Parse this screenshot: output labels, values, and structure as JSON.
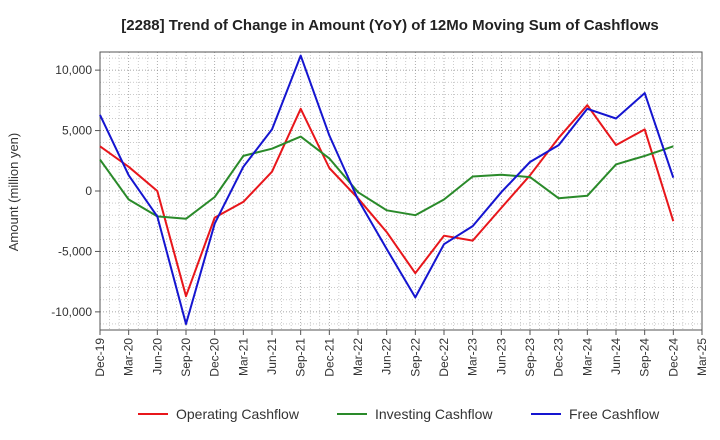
{
  "chart_data": {
    "type": "line",
    "title": "[2288]  Trend of Change in Amount (YoY) of 12Mo Moving Sum of Cashflows",
    "xlabel": "",
    "ylabel": "Amount (million yen)",
    "ylim": [
      -11500,
      11500
    ],
    "yticks": [
      10000,
      5000,
      0,
      -5000,
      -10000
    ],
    "ytick_labels": [
      "10,000",
      "5,000",
      "0",
      "-5,000",
      "-10,000"
    ],
    "categories": [
      "Dec-19",
      "Mar-20",
      "Jun-20",
      "Sep-20",
      "Dec-20",
      "Mar-21",
      "Jun-21",
      "Sep-21",
      "Dec-21",
      "Mar-22",
      "Jun-22",
      "Sep-22",
      "Dec-22",
      "Mar-23",
      "Jun-23",
      "Sep-23",
      "Dec-23",
      "Mar-24",
      "Jun-24",
      "Sep-24",
      "Dec-24",
      "Mar-25"
    ],
    "grid": true,
    "legend_position": "bottom",
    "series": [
      {
        "name": "Operating Cashflow",
        "color": "#e8161b",
        "values": [
          3700,
          2000,
          0,
          -8700,
          -2200,
          -900,
          1600,
          6800,
          1900,
          -600,
          -3400,
          -6800,
          -3700,
          -4100,
          -1400,
          1300,
          4400,
          7100,
          3800,
          5100,
          -2500,
          null
        ]
      },
      {
        "name": "Investing Cashflow",
        "color": "#2a8a2a",
        "values": [
          2600,
          -700,
          -2100,
          -2300,
          -500,
          2900,
          3500,
          4500,
          2700,
          -100,
          -1600,
          -2000,
          -700,
          1200,
          1350,
          1150,
          -600,
          -400,
          2200,
          2900,
          3700,
          null
        ]
      },
      {
        "name": "Free Cashflow",
        "color": "#1515d0",
        "values": [
          6300,
          1300,
          -2100,
          -11000,
          -2700,
          2000,
          5100,
          11200,
          4600,
          -700,
          -4800,
          -8800,
          -4400,
          -2900,
          -100,
          2400,
          3800,
          6800,
          6000,
          8100,
          1100,
          null
        ]
      }
    ]
  }
}
